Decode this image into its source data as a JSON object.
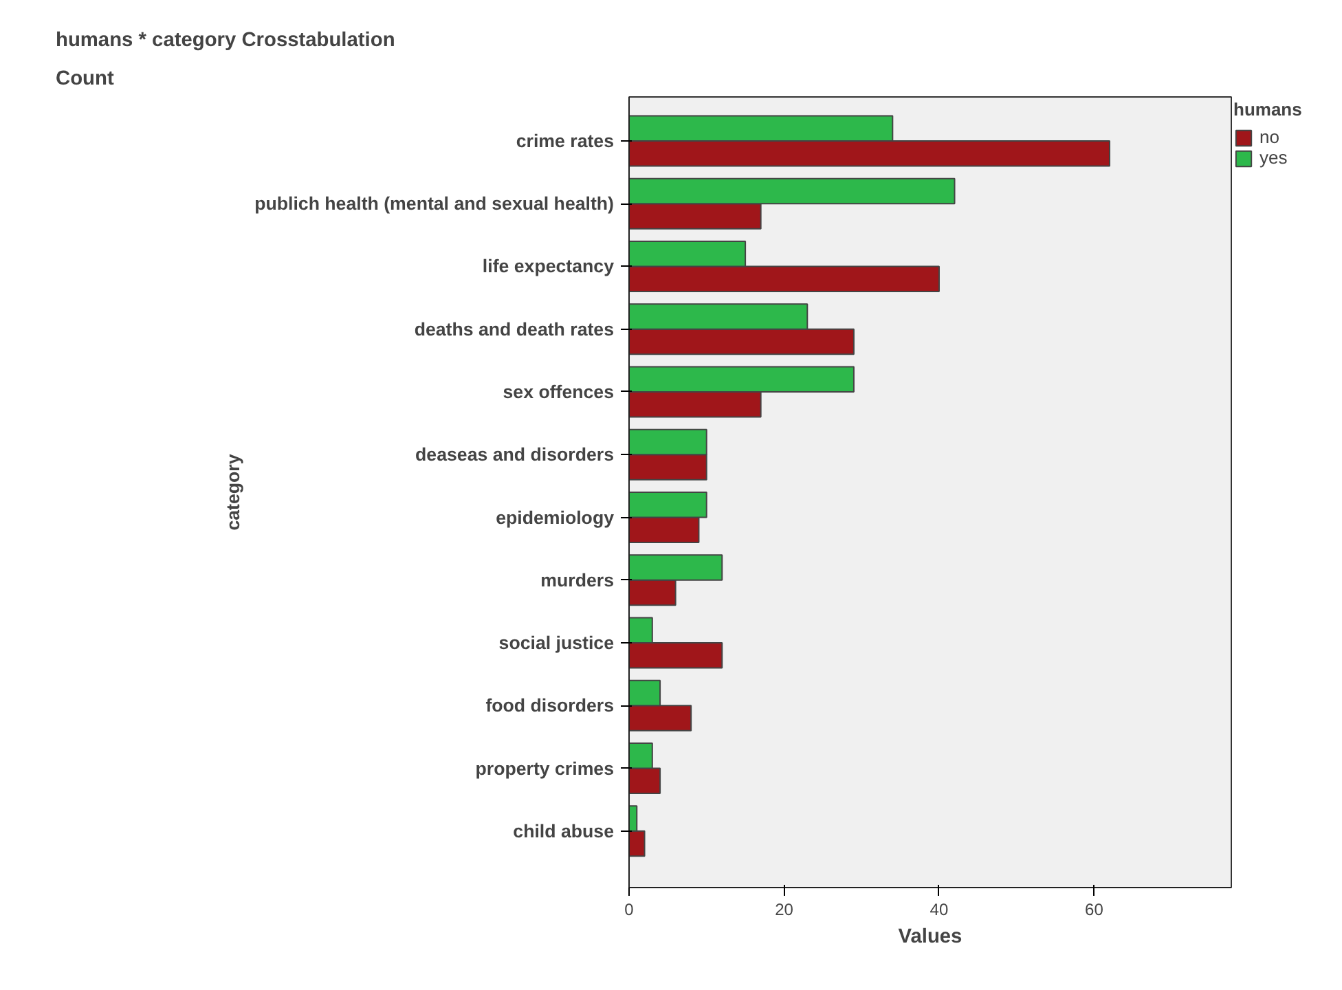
{
  "chart_data": {
    "type": "bar",
    "orientation": "horizontal",
    "title": "humans * category Crosstabulation",
    "subtitle": "Count",
    "xlabel": "Values",
    "ylabel": "category",
    "legend_title": "humans",
    "categories": [
      "crime rates",
      "publich health (mental and sexual health)",
      "life expectancy",
      "deaths and death rates",
      "sex offences",
      "deaseas and disorders",
      "epidemiology",
      "murders",
      "social justice",
      "food disorders",
      "property crimes",
      "child abuse"
    ],
    "series": [
      {
        "name": "no",
        "color": "#a0161a",
        "values": [
          62,
          17,
          40,
          29,
          17,
          10,
          9,
          6,
          12,
          8,
          4,
          2
        ]
      },
      {
        "name": "yes",
        "color": "#2db84b",
        "values": [
          34,
          42,
          15,
          23,
          29,
          10,
          10,
          12,
          3,
          4,
          3,
          1
        ]
      }
    ],
    "xlim": [
      0,
      77.7
    ],
    "xticks": [
      0,
      20,
      40,
      60
    ],
    "grid": false,
    "legend": "top right"
  }
}
